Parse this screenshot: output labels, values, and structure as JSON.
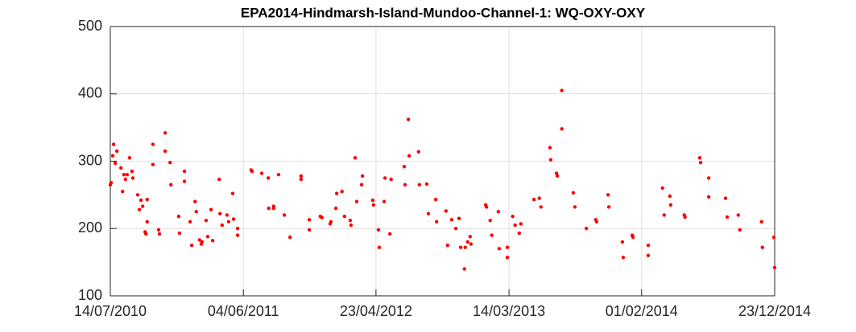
{
  "chart_data": {
    "type": "scatter",
    "title": "EPA2014-Hindmarsh-Island-Mundoo-Channel-1: WQ-OXY-OXY",
    "color": "#ff0000",
    "grid": true,
    "xlim": [
      "2010-07-14",
      "2014-12-23"
    ],
    "xticks": [
      {
        "value": "2010-07-14",
        "label": "14/07/2010"
      },
      {
        "value": "2011-06-04",
        "label": "04/06/2011"
      },
      {
        "value": "2012-04-23",
        "label": "23/04/2012"
      },
      {
        "value": "2013-03-14",
        "label": "14/03/2013"
      },
      {
        "value": "2014-02-01",
        "label": "01/02/2014"
      },
      {
        "value": "2014-12-23",
        "label": "23/12/2014"
      }
    ],
    "ylim": [
      100,
      500
    ],
    "yticks": [
      100,
      200,
      300,
      400,
      500
    ],
    "x": [
      "2010-07-14",
      "2010-07-16",
      "2010-07-20",
      "2010-07-22",
      "2010-07-26",
      "2010-07-30",
      "2010-08-09",
      "2010-08-13",
      "2010-08-16",
      "2010-08-20",
      "2010-08-24",
      "2010-08-30",
      "2010-09-05",
      "2010-09-07",
      "2010-09-19",
      "2010-09-23",
      "2010-09-27",
      "2010-10-01",
      "2010-10-07",
      "2010-10-09",
      "2010-10-12",
      "2010-10-12",
      "2010-10-26",
      "2010-10-26",
      "2010-11-09",
      "2010-11-11",
      "2010-11-25",
      "2010-11-25",
      "2010-12-07",
      "2010-12-09",
      "2010-12-28",
      "2010-12-30",
      "2011-01-11",
      "2011-01-11",
      "2011-01-25",
      "2011-01-29",
      "2011-02-06",
      "2011-02-09",
      "2011-02-17",
      "2011-02-21",
      "2011-02-23",
      "2011-03-05",
      "2011-03-09",
      "2011-03-17",
      "2011-03-21",
      "2011-04-06",
      "2011-04-08",
      "2011-04-13",
      "2011-04-25",
      "2011-04-29",
      "2011-05-09",
      "2011-05-11",
      "2011-05-21",
      "2011-05-21",
      "2011-06-23",
      "2011-06-25",
      "2011-07-19",
      "2011-08-04",
      "2011-08-05",
      "2011-08-17",
      "2011-08-17",
      "2011-08-29",
      "2011-09-12",
      "2011-09-26",
      "2011-10-23",
      "2011-10-23",
      "2011-11-12",
      "2011-11-12",
      "2011-12-09",
      "2011-12-13",
      "2012-01-02",
      "2012-01-04",
      "2012-01-16",
      "2012-01-18",
      "2012-01-31",
      "2012-02-06",
      "2012-02-20",
      "2012-02-22",
      "2012-03-03",
      "2012-03-07",
      "2012-03-19",
      "2012-03-21",
      "2012-04-15",
      "2012-04-17",
      "2012-04-29",
      "2012-05-01",
      "2012-05-13",
      "2012-05-15",
      "2012-05-27",
      "2012-05-30",
      "2012-07-01",
      "2012-07-03",
      "2012-07-11",
      "2012-07-13",
      "2012-08-05",
      "2012-08-07",
      "2012-08-25",
      "2012-08-29",
      "2012-09-16",
      "2012-09-18",
      "2012-10-11",
      "2012-10-15",
      "2012-10-25",
      "2012-11-04",
      "2012-11-12",
      "2012-11-16",
      "2012-11-25",
      "2012-11-27",
      "2012-12-03",
      "2012-12-09",
      "2012-12-11",
      "2013-01-16",
      "2013-01-18",
      "2013-01-27",
      "2013-01-31",
      "2013-02-16",
      "2013-02-18",
      "2013-03-10",
      "2013-03-10",
      "2013-03-23",
      "2013-03-29",
      "2013-04-08",
      "2013-04-12",
      "2013-05-14",
      "2013-05-27",
      "2013-05-31",
      "2013-06-22",
      "2013-06-24",
      "2013-07-08",
      "2013-07-10",
      "2013-07-21",
      "2013-07-21",
      "2013-08-18",
      "2013-08-22",
      "2013-09-19",
      "2013-10-12",
      "2013-10-14",
      "2013-11-11",
      "2013-11-13",
      "2013-12-16",
      "2013-12-18",
      "2014-01-09",
      "2014-01-11",
      "2014-02-17",
      "2014-02-17",
      "2014-03-24",
      "2014-03-28",
      "2014-04-11",
      "2014-04-13",
      "2014-05-16",
      "2014-05-18",
      "2014-06-23",
      "2014-06-25",
      "2014-07-15",
      "2014-07-15",
      "2014-08-25",
      "2014-08-29",
      "2014-09-25",
      "2014-09-29",
      "2014-11-21",
      "2014-11-23",
      "2014-12-21",
      "2014-12-23"
    ],
    "values": [
      265,
      268,
      308,
      325,
      297,
      315,
      290,
      255,
      280,
      273,
      280,
      305,
      285,
      275,
      250,
      228,
      242,
      233,
      195,
      192,
      243,
      210,
      325,
      295,
      198,
      192,
      342,
      315,
      298,
      265,
      218,
      193,
      285,
      270,
      210,
      175,
      240,
      225,
      183,
      177,
      180,
      212,
      188,
      228,
      182,
      273,
      222,
      205,
      220,
      210,
      252,
      214,
      200,
      190,
      287,
      285,
      282,
      275,
      230,
      233,
      230,
      280,
      220,
      187,
      278,
      273,
      213,
      198,
      218,
      216,
      207,
      210,
      230,
      252,
      255,
      218,
      212,
      205,
      305,
      240,
      265,
      278,
      242,
      235,
      198,
      172,
      240,
      275,
      192,
      273,
      292,
      265,
      362,
      308,
      314,
      265,
      266,
      222,
      243,
      210,
      226,
      175,
      213,
      200,
      215,
      172,
      140,
      172,
      180,
      188,
      177,
      235,
      232,
      212,
      190,
      225,
      170,
      172,
      157,
      218,
      205,
      193,
      207,
      243,
      245,
      232,
      320,
      302,
      282,
      278,
      405,
      348,
      253,
      232,
      200,
      213,
      210,
      250,
      232,
      180,
      157,
      190,
      187,
      175,
      160,
      260,
      220,
      248,
      235,
      220,
      217,
      305,
      298,
      275,
      247,
      245,
      217,
      220,
      198,
      210,
      172,
      187,
      142
    ]
  }
}
